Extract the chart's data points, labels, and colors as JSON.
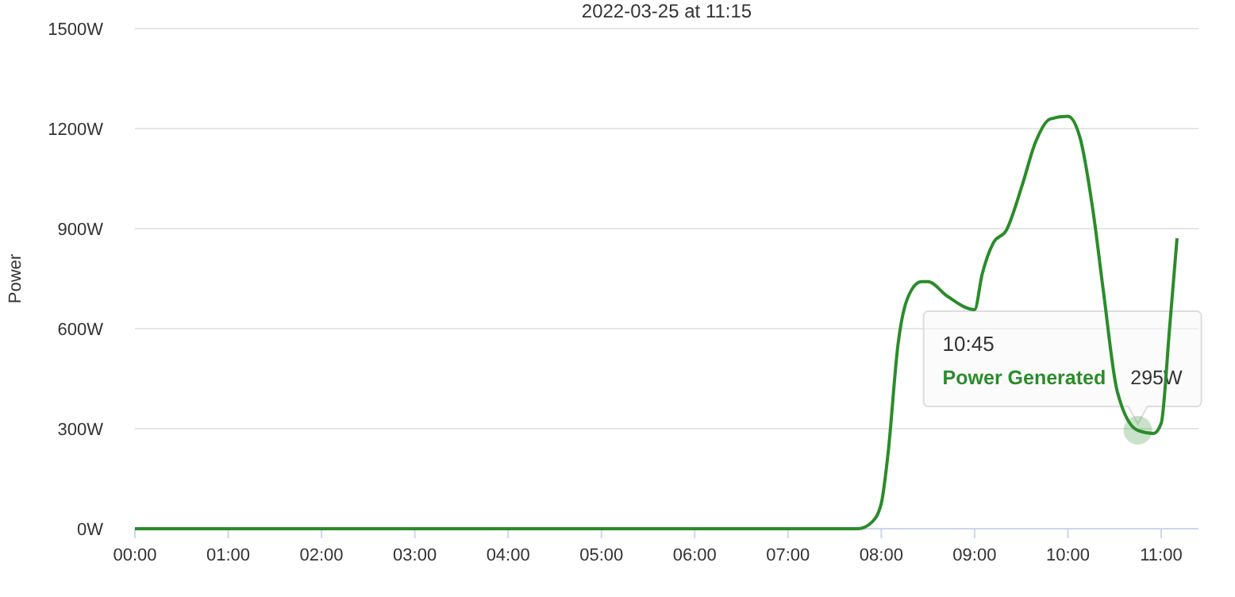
{
  "chart_data": {
    "type": "line",
    "title": "2022-03-25 at 11:15",
    "ylabel": "Power",
    "xlim": [
      0,
      11.4
    ],
    "ylim": [
      0,
      1500
    ],
    "xticks": [
      {
        "value": 0,
        "label": "00:00"
      },
      {
        "value": 1,
        "label": "01:00"
      },
      {
        "value": 2,
        "label": "02:00"
      },
      {
        "value": 3,
        "label": "03:00"
      },
      {
        "value": 4,
        "label": "04:00"
      },
      {
        "value": 5,
        "label": "05:00"
      },
      {
        "value": 6,
        "label": "06:00"
      },
      {
        "value": 7,
        "label": "07:00"
      },
      {
        "value": 8,
        "label": "08:00"
      },
      {
        "value": 9,
        "label": "09:00"
      },
      {
        "value": 10,
        "label": "10:00"
      },
      {
        "value": 11,
        "label": "11:00"
      }
    ],
    "yticks": [
      {
        "value": 0,
        "label": "0W"
      },
      {
        "value": 300,
        "label": "300W"
      },
      {
        "value": 600,
        "label": "600W"
      },
      {
        "value": 900,
        "label": "900W"
      },
      {
        "value": 1200,
        "label": "1200W"
      },
      {
        "value": 1500,
        "label": "1500W"
      }
    ],
    "grid": "y",
    "marker": "none",
    "line_style": "solid",
    "series": [
      {
        "name": "Power Generated",
        "color": "#2a8c2a",
        "x": [
          0,
          2,
          4,
          6,
          7.5,
          7.75,
          7.9,
          8,
          8.07,
          8.18,
          8.32,
          8.43,
          8.5,
          8.71,
          9,
          9.08,
          9.2,
          9.34,
          9.51,
          9.65,
          9.81,
          10,
          10.13,
          10.27,
          10.38,
          10.53,
          10.75,
          10.92,
          11,
          11.09,
          11.17
        ],
        "values": [
          0,
          0,
          0,
          0,
          0,
          0,
          20,
          76,
          219,
          554,
          714,
          741,
          741,
          697,
          657,
          762,
          857,
          895,
          1030,
          1157,
          1229,
          1237,
          1173,
          952,
          714,
          411,
          295,
          286,
          316,
          601,
          871
        ]
      }
    ],
    "annotations": [
      "10:45",
      {
        "text": "295W",
        "x": 10.75,
        "y": 295
      }
    ]
  }
}
